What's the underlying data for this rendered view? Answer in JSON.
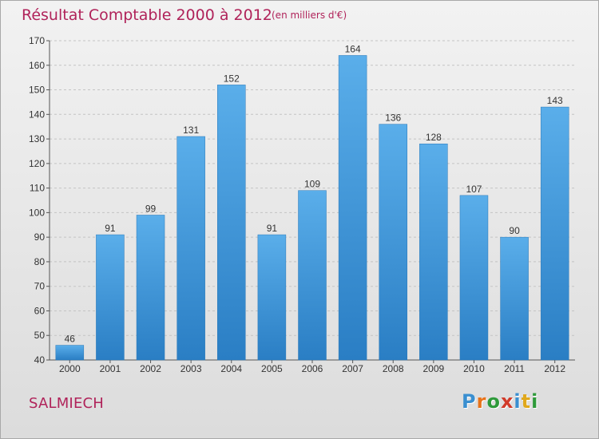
{
  "header": {
    "title": "Résultat Comptable 2000 à 2012",
    "subtitle": "(en milliers d'€)"
  },
  "footer": {
    "town": "SALMIECH",
    "logo_letters": [
      "P",
      "r",
      "o",
      "x",
      "i",
      "t",
      "i"
    ],
    "logo_colors": [
      "#3a8fd0",
      "#e8731a",
      "#2e9a3a",
      "#d13b2a",
      "#3a8fd0",
      "#e0a81c",
      "#2e9a3a"
    ]
  },
  "chart_data": {
    "type": "bar",
    "categories": [
      "2000",
      "2001",
      "2002",
      "2003",
      "2004",
      "2005",
      "2006",
      "2007",
      "2008",
      "2009",
      "2010",
      "2011",
      "2012"
    ],
    "values": [
      46,
      91,
      99,
      131,
      152,
      91,
      109,
      164,
      136,
      128,
      107,
      90,
      143
    ],
    "data_labels": [
      "46",
      "91",
      "99",
      "131",
      "152",
      "91",
      "109",
      "164",
      "136",
      "128",
      "107",
      "90",
      "143"
    ],
    "ylim": [
      40,
      170
    ],
    "yticks": [
      40,
      50,
      60,
      70,
      80,
      90,
      100,
      110,
      120,
      130,
      140,
      150,
      160,
      170
    ],
    "grid": true,
    "bar_color_top": "#5aaeea",
    "bar_color_bottom": "#2a7ec4"
  }
}
